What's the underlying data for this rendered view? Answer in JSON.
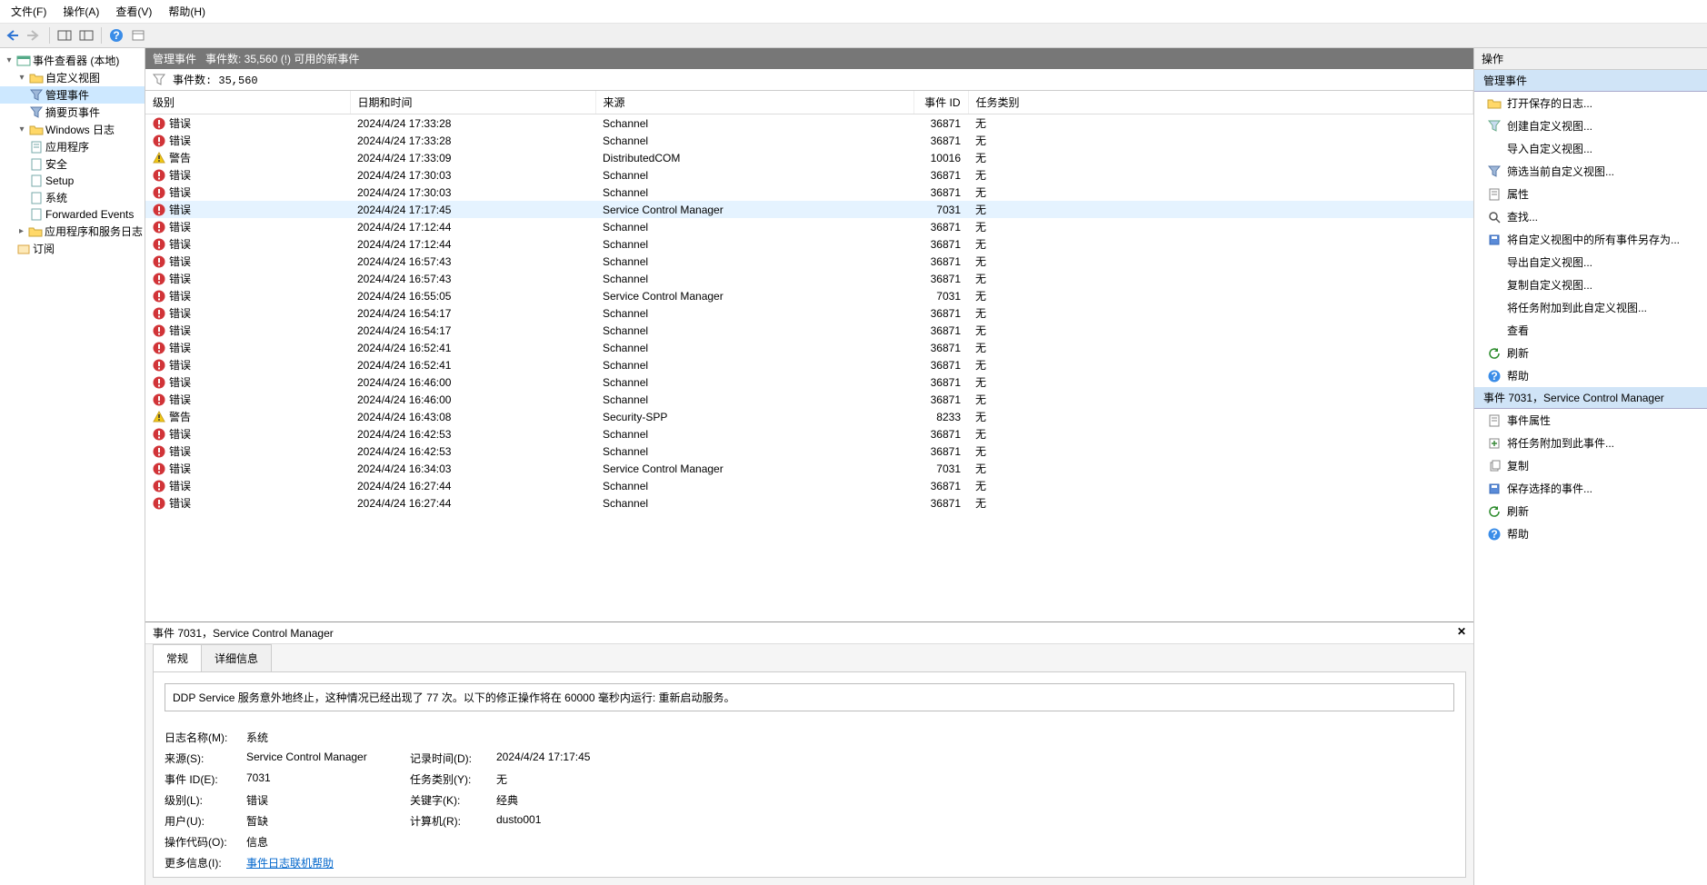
{
  "menu": {
    "file": "文件(F)",
    "action": "操作(A)",
    "view": "查看(V)",
    "help": "帮助(H)"
  },
  "tree": {
    "root": "事件查看器 (本地)",
    "custom": "自定义视图",
    "admin": "管理事件",
    "summary": "摘要页事件",
    "winlogs": "Windows 日志",
    "app": "应用程序",
    "security": "安全",
    "setup": "Setup",
    "system": "系统",
    "forwarded": "Forwarded Events",
    "appsvcs": "应用程序和服务日志",
    "subs": "订阅"
  },
  "center": {
    "title": "管理事件",
    "countLabel": "事件数: 35,560 (!) 可用的新事件",
    "filterCount": "事件数: 35,560",
    "cols": {
      "level": "级别",
      "datetime": "日期和时间",
      "source": "来源",
      "id": "事件 ID",
      "cat": "任务类别"
    },
    "levels": {
      "error": "错误",
      "warning": "警告"
    },
    "rows": [
      {
        "lvl": "error",
        "dt": "2024/4/24 17:33:28",
        "src": "Schannel",
        "id": "36871",
        "cat": "无"
      },
      {
        "lvl": "error",
        "dt": "2024/4/24 17:33:28",
        "src": "Schannel",
        "id": "36871",
        "cat": "无"
      },
      {
        "lvl": "warning",
        "dt": "2024/4/24 17:33:09",
        "src": "DistributedCOM",
        "id": "10016",
        "cat": "无"
      },
      {
        "lvl": "error",
        "dt": "2024/4/24 17:30:03",
        "src": "Schannel",
        "id": "36871",
        "cat": "无"
      },
      {
        "lvl": "error",
        "dt": "2024/4/24 17:30:03",
        "src": "Schannel",
        "id": "36871",
        "cat": "无"
      },
      {
        "lvl": "error",
        "dt": "2024/4/24 17:17:45",
        "src": "Service Control Manager",
        "id": "7031",
        "cat": "无",
        "sel": true
      },
      {
        "lvl": "error",
        "dt": "2024/4/24 17:12:44",
        "src": "Schannel",
        "id": "36871",
        "cat": "无"
      },
      {
        "lvl": "error",
        "dt": "2024/4/24 17:12:44",
        "src": "Schannel",
        "id": "36871",
        "cat": "无"
      },
      {
        "lvl": "error",
        "dt": "2024/4/24 16:57:43",
        "src": "Schannel",
        "id": "36871",
        "cat": "无"
      },
      {
        "lvl": "error",
        "dt": "2024/4/24 16:57:43",
        "src": "Schannel",
        "id": "36871",
        "cat": "无"
      },
      {
        "lvl": "error",
        "dt": "2024/4/24 16:55:05",
        "src": "Service Control Manager",
        "id": "7031",
        "cat": "无"
      },
      {
        "lvl": "error",
        "dt": "2024/4/24 16:54:17",
        "src": "Schannel",
        "id": "36871",
        "cat": "无"
      },
      {
        "lvl": "error",
        "dt": "2024/4/24 16:54:17",
        "src": "Schannel",
        "id": "36871",
        "cat": "无"
      },
      {
        "lvl": "error",
        "dt": "2024/4/24 16:52:41",
        "src": "Schannel",
        "id": "36871",
        "cat": "无"
      },
      {
        "lvl": "error",
        "dt": "2024/4/24 16:52:41",
        "src": "Schannel",
        "id": "36871",
        "cat": "无"
      },
      {
        "lvl": "error",
        "dt": "2024/4/24 16:46:00",
        "src": "Schannel",
        "id": "36871",
        "cat": "无"
      },
      {
        "lvl": "error",
        "dt": "2024/4/24 16:46:00",
        "src": "Schannel",
        "id": "36871",
        "cat": "无"
      },
      {
        "lvl": "warning",
        "dt": "2024/4/24 16:43:08",
        "src": "Security-SPP",
        "id": "8233",
        "cat": "无"
      },
      {
        "lvl": "error",
        "dt": "2024/4/24 16:42:53",
        "src": "Schannel",
        "id": "36871",
        "cat": "无"
      },
      {
        "lvl": "error",
        "dt": "2024/4/24 16:42:53",
        "src": "Schannel",
        "id": "36871",
        "cat": "无"
      },
      {
        "lvl": "error",
        "dt": "2024/4/24 16:34:03",
        "src": "Service Control Manager",
        "id": "7031",
        "cat": "无"
      },
      {
        "lvl": "error",
        "dt": "2024/4/24 16:27:44",
        "src": "Schannel",
        "id": "36871",
        "cat": "无"
      },
      {
        "lvl": "error",
        "dt": "2024/4/24 16:27:44",
        "src": "Schannel",
        "id": "36871",
        "cat": "无"
      }
    ]
  },
  "detail": {
    "title": "事件 7031，Service Control Manager",
    "tabs": {
      "general": "常规",
      "details": "详细信息"
    },
    "message": "DDP Service 服务意外地终止，这种情况已经出现了 77 次。以下的修正操作将在 60000 毫秒内运行: 重新启动服务。",
    "labels": {
      "log": "日志名称(M):",
      "source": "来源(S):",
      "logged": "记录时间(D):",
      "id": "事件 ID(E):",
      "cat": "任务类别(Y):",
      "level": "级别(L):",
      "keywords": "关键字(K):",
      "user": "用户(U):",
      "computer": "计算机(R):",
      "opcode": "操作代码(O):",
      "moreinfo": "更多信息(I):"
    },
    "values": {
      "log": "系统",
      "source": "Service Control Manager",
      "logged": "2024/4/24 17:17:45",
      "id": "7031",
      "cat": "无",
      "level": "错误",
      "keywords": "经典",
      "user": "暂缺",
      "computer": "dusto001",
      "opcode": "信息",
      "moreinfo": "事件日志联机帮助"
    }
  },
  "actions": {
    "title": "操作",
    "section1": "管理事件",
    "items1": [
      {
        "icon": "folder",
        "label": "打开保存的日志..."
      },
      {
        "icon": "filter",
        "label": "创建自定义视图..."
      },
      {
        "icon": "none",
        "label": "导入自定义视图..."
      },
      {
        "icon": "funnel",
        "label": "筛选当前自定义视图..."
      },
      {
        "icon": "props",
        "label": "属性"
      },
      {
        "icon": "find",
        "label": "查找..."
      },
      {
        "icon": "saveas",
        "label": "将自定义视图中的所有事件另存为..."
      },
      {
        "icon": "none",
        "label": "导出自定义视图..."
      },
      {
        "icon": "none",
        "label": "复制自定义视图..."
      },
      {
        "icon": "none",
        "label": "将任务附加到此自定义视图..."
      },
      {
        "icon": "none",
        "label": "查看"
      },
      {
        "icon": "refresh",
        "label": "刷新"
      },
      {
        "icon": "help",
        "label": "帮助"
      }
    ],
    "section2": "事件 7031，Service Control Manager",
    "items2": [
      {
        "icon": "props",
        "label": "事件属性"
      },
      {
        "icon": "attach",
        "label": "将任务附加到此事件..."
      },
      {
        "icon": "copy",
        "label": "复制"
      },
      {
        "icon": "save",
        "label": "保存选择的事件..."
      },
      {
        "icon": "refresh",
        "label": "刷新"
      },
      {
        "icon": "help",
        "label": "帮助"
      }
    ]
  },
  "colors": {
    "headerBg": "#777777",
    "headerFg": "#ffffff",
    "sectionBg": "#d0e4f7",
    "selRow": "#e5f3ff",
    "error": "#d13438",
    "warning": "#f2c811",
    "link": "#0066cc"
  }
}
